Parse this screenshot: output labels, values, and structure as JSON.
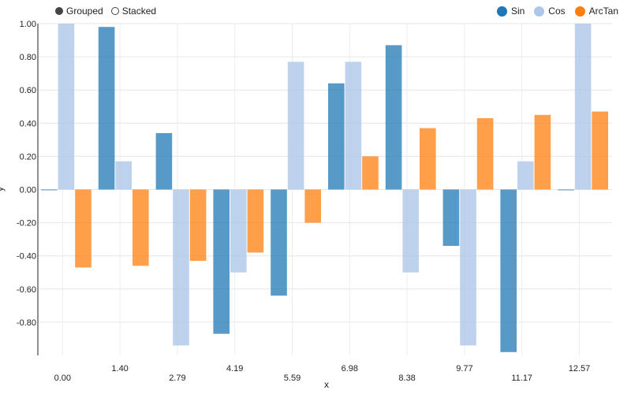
{
  "controls": {
    "grouped_label": "Grouped",
    "stacked_label": "Stacked"
  },
  "chart_data": {
    "type": "bar",
    "title": "",
    "xlabel": "x",
    "ylabel": "y",
    "ylim": [
      -1.0,
      1.0
    ],
    "yticks": [
      "-0.80",
      "-0.60",
      "-0.40",
      "-0.20",
      "0.00",
      "0.20",
      "0.40",
      "0.60",
      "0.80",
      "1.00"
    ],
    "categories": [
      "0.00",
      "1.40",
      "2.79",
      "4.19",
      "5.59",
      "6.98",
      "8.38",
      "9.77",
      "11.17",
      "12.57"
    ],
    "grid": true,
    "legend_position": "top-right",
    "series": [
      {
        "name": "Sin",
        "color": "#1f77b4",
        "values": [
          0.0,
          0.98,
          0.34,
          -0.87,
          -0.64,
          0.64,
          0.87,
          -0.34,
          -0.98,
          0.0
        ]
      },
      {
        "name": "Cos",
        "color": "#aec7e8",
        "values": [
          1.0,
          0.17,
          -0.94,
          -0.5,
          0.77,
          0.77,
          -0.5,
          -0.94,
          0.17,
          1.0
        ]
      },
      {
        "name": "ArcTan",
        "color": "#ff7f0e",
        "values": [
          -0.47,
          -0.46,
          -0.43,
          -0.38,
          -0.2,
          0.2,
          0.37,
          0.43,
          0.45,
          0.47
        ]
      }
    ]
  }
}
